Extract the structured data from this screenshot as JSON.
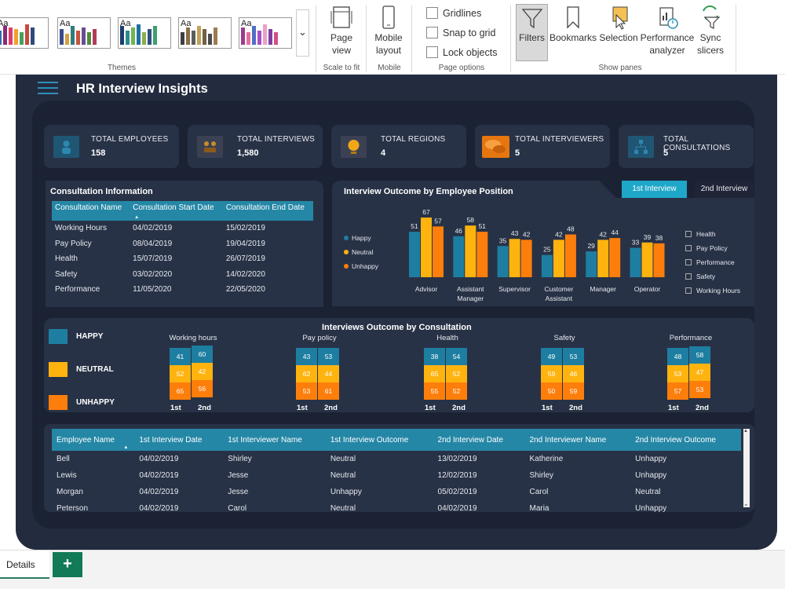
{
  "ribbon": {
    "themes_label": "Themes",
    "theme_aa": "Aa",
    "page_view_label": "Page view",
    "page_view_chevron": "⌄",
    "scale_to_fit_label": "Scale to fit",
    "mobile_layout_label": "Mobile layout",
    "mobile_label": "Mobile",
    "gridlines_label": "Gridlines",
    "snap_label": "Snap to grid",
    "lock_label": "Lock objects",
    "page_options_label": "Page options",
    "filters_label": "Filters",
    "bookmarks_label": "Bookmarks",
    "selection_label": "Selection",
    "perf_label": "Performance analyzer",
    "sync_label": "Sync slicers",
    "show_panes_label": "Show panes",
    "more_chevron": "⌄"
  },
  "report": {
    "title": "HR Interview Insights",
    "kpis": [
      {
        "label": "TOTAL EMPLOYEES",
        "value": "158"
      },
      {
        "label": "TOTAL INTERVIEWS",
        "value": "1,580"
      },
      {
        "label": "TOTAL REGIONS",
        "value": "4"
      },
      {
        "label": "TOTAL INTERVIEWERS",
        "value": "5"
      },
      {
        "label": "TOTAL CONSULTATIONS",
        "value": "5"
      }
    ],
    "consultation": {
      "title": "Consultation Information",
      "columns": [
        "Consultation Name",
        "Consultation Start Date",
        "Consultation End Date"
      ],
      "sort_arrow": "▲",
      "rows": [
        [
          "Working Hours",
          "04/02/2019",
          "15/02/2019"
        ],
        [
          "Pay Policy",
          "08/04/2019",
          "19/04/2019"
        ],
        [
          "Health",
          "15/07/2019",
          "26/07/2019"
        ],
        [
          "Safety",
          "03/02/2020",
          "14/02/2020"
        ],
        [
          "Performance",
          "11/05/2020",
          "22/05/2020"
        ]
      ]
    },
    "outcome_tabs": {
      "first": "1st Interview",
      "second": "2nd Interview"
    },
    "position_filters": [
      "Health",
      "Pay Policy",
      "Performance",
      "Safety",
      "Working Hours"
    ],
    "consult_legend": {
      "happy": "HAPPY",
      "neutral": "NEUTRAL",
      "unhappy": "UNHAPPY"
    },
    "employee_table": {
      "columns": [
        "Employee Name",
        "1st Interview Date",
        "1st Interviewer Name",
        "1st Interview Outcome",
        "2nd Interview Date",
        "2nd Interviewer Name",
        "2nd Interview Outcome"
      ],
      "sort_arrow": "▲",
      "rows": [
        [
          "Bell",
          "04/02/2019",
          "Shirley",
          "Neutral",
          "13/02/2019",
          "Katherine",
          "Unhappy"
        ],
        [
          "Lewis",
          "04/02/2019",
          "Jesse",
          "Neutral",
          "12/02/2019",
          "Shirley",
          "Unhappy"
        ],
        [
          "Morgan",
          "04/02/2019",
          "Jesse",
          "Unhappy",
          "05/02/2019",
          "Carol",
          "Neutral"
        ],
        [
          "Peterson",
          "04/02/2019",
          "Carol",
          "Neutral",
          "04/02/2019",
          "Maria",
          "Unhappy"
        ]
      ],
      "scroll_up": "▲",
      "scroll_down": "⌄"
    },
    "colors": {
      "happy": "#1d7ea1",
      "neutral": "#ffb30f",
      "unhappy": "#fd7e0b"
    }
  },
  "tabs": {
    "details": "Details",
    "add": "+"
  },
  "chart_data": [
    {
      "type": "bar",
      "title": "Interview Outcome by Employee Position",
      "categories": [
        "Advisor",
        "Assistant Manager",
        "Supervisor",
        "Customer Assistant",
        "Manager",
        "Operator"
      ],
      "series": [
        {
          "name": "Happy",
          "values": [
            51,
            46,
            35,
            25,
            29,
            33
          ]
        },
        {
          "name": "Neutral",
          "values": [
            67,
            58,
            43,
            42,
            42,
            39
          ]
        },
        {
          "name": "Unhappy",
          "values": [
            57,
            51,
            42,
            48,
            44,
            38
          ]
        }
      ],
      "legend": "left"
    },
    {
      "type": "bar",
      "title": "Interviews Outcome by Consultation",
      "stacked": true,
      "categories": [
        "Working hours",
        "Pay policy",
        "Health",
        "Safety",
        "Performance"
      ],
      "x": [
        "1st",
        "2nd"
      ],
      "series": [
        {
          "name": "HAPPY",
          "values": [
            [
              41,
              60
            ],
            [
              43,
              53
            ],
            [
              38,
              54
            ],
            [
              49,
              53
            ],
            [
              48,
              58
            ]
          ]
        },
        {
          "name": "NEUTRAL",
          "values": [
            [
              52,
              42
            ],
            [
              62,
              44
            ],
            [
              65,
              52
            ],
            [
              59,
              46
            ],
            [
              53,
              47
            ]
          ]
        },
        {
          "name": "UNHAPPY",
          "values": [
            [
              65,
              56
            ],
            [
              53,
              61
            ],
            [
              55,
              52
            ],
            [
              50,
              59
            ],
            [
              57,
              53
            ]
          ]
        }
      ],
      "legend": "left"
    }
  ]
}
